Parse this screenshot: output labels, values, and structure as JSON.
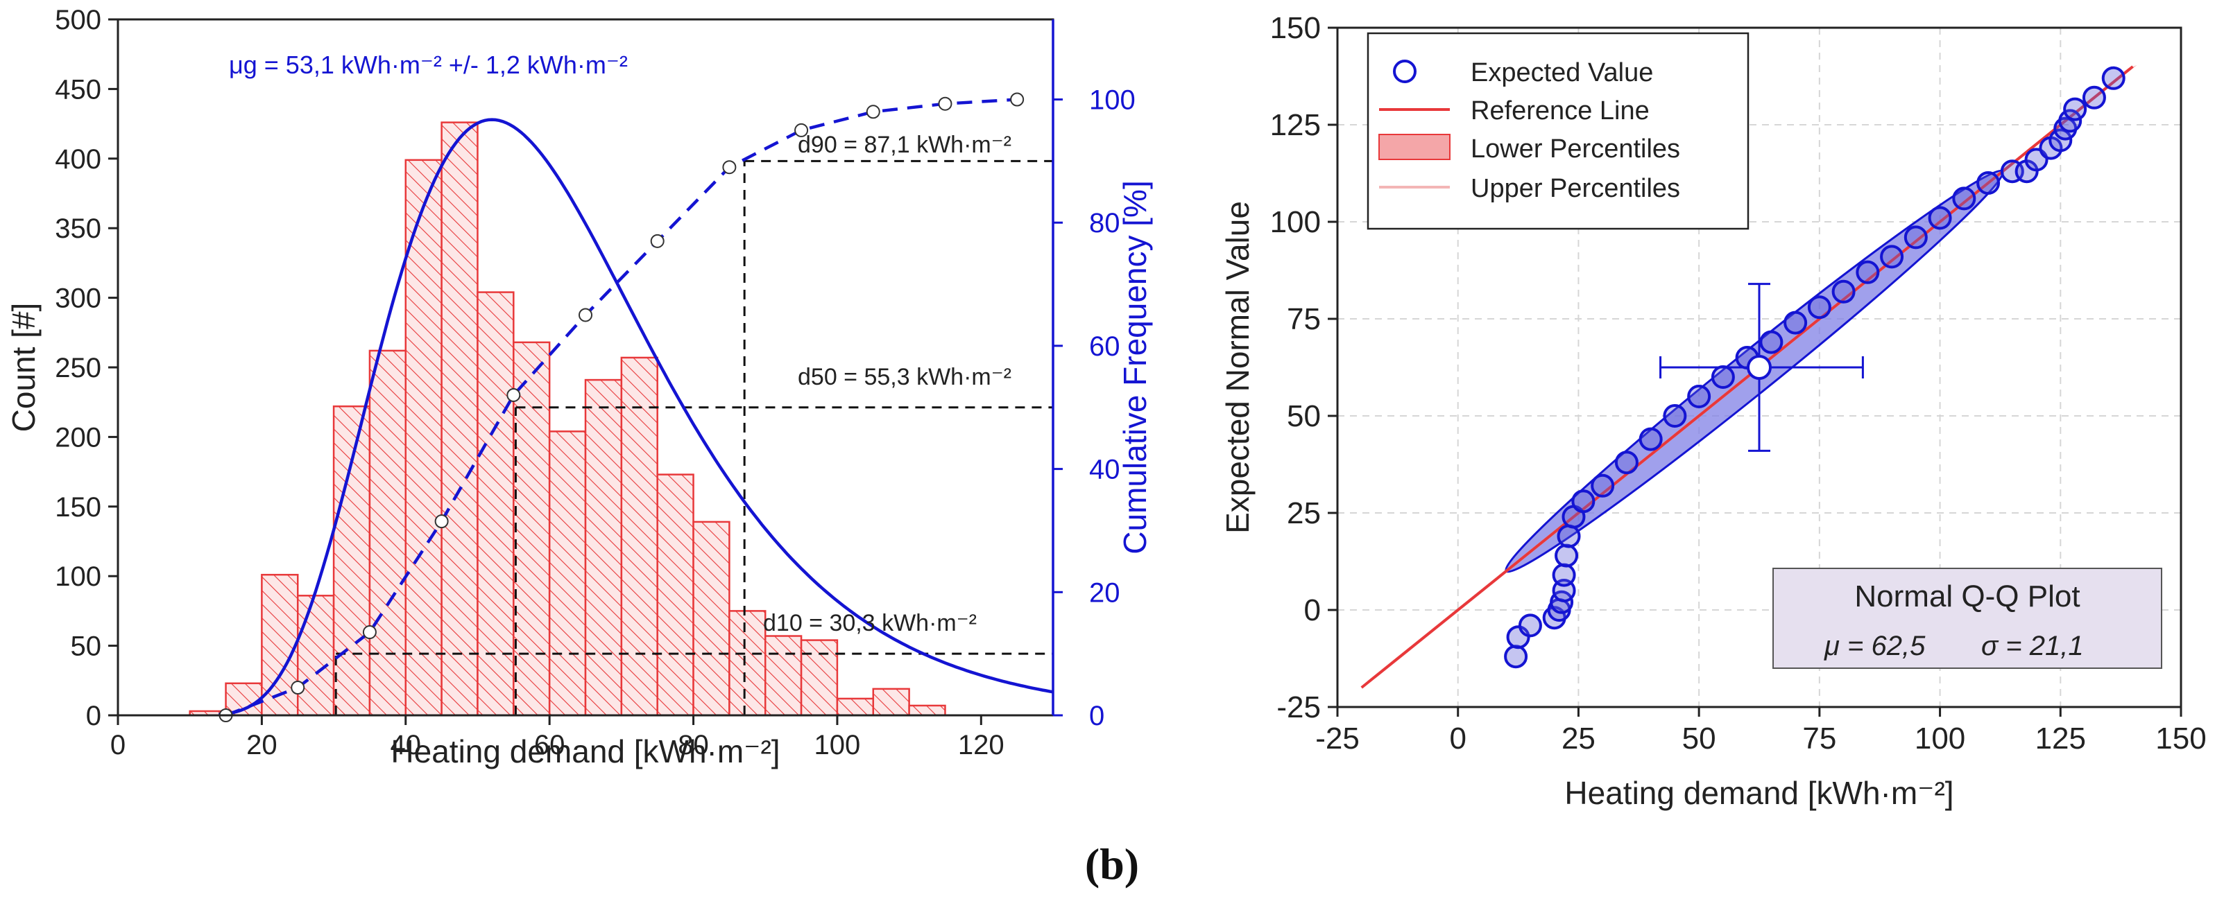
{
  "figure": {
    "caption": "(b)"
  },
  "colors": {
    "blue": "#1414d2",
    "red": "#e8383a",
    "bar_fill": "#fde7e7",
    "ellipse_fill": "#8080e6",
    "plotbox_fill": "#e6e0ef"
  },
  "chart_data": [
    {
      "type": "bar",
      "id": "histogram",
      "xlabel": "Heating demand [kWh·m⁻²]",
      "ylabel": "Count [#]",
      "y2label": "Cumulative Frequency [%]",
      "xlim": [
        0,
        130
      ],
      "ylim": [
        0,
        500
      ],
      "y2lim": [
        0,
        113
      ],
      "x_ticks": [
        0,
        20,
        40,
        60,
        80,
        100,
        120
      ],
      "y_ticks": [
        0,
        50,
        100,
        150,
        200,
        250,
        300,
        350,
        400,
        450,
        500
      ],
      "y2_ticks": [
        0,
        20,
        40,
        60,
        80,
        100
      ],
      "bin_width": 5,
      "bins": [
        {
          "x0": 10,
          "count": 3
        },
        {
          "x0": 15,
          "count": 23
        },
        {
          "x0": 20,
          "count": 101
        },
        {
          "x0": 25,
          "count": 86
        },
        {
          "x0": 30,
          "count": 222
        },
        {
          "x0": 35,
          "count": 262
        },
        {
          "x0": 40,
          "count": 399
        },
        {
          "x0": 45,
          "count": 426
        },
        {
          "x0": 50,
          "count": 304
        },
        {
          "x0": 55,
          "count": 268
        },
        {
          "x0": 60,
          "count": 204
        },
        {
          "x0": 65,
          "count": 241
        },
        {
          "x0": 70,
          "count": 257
        },
        {
          "x0": 75,
          "count": 173
        },
        {
          "x0": 80,
          "count": 139
        },
        {
          "x0": 85,
          "count": 75
        },
        {
          "x0": 90,
          "count": 57
        },
        {
          "x0": 95,
          "count": 54
        },
        {
          "x0": 100,
          "count": 12
        },
        {
          "x0": 105,
          "count": 19
        },
        {
          "x0": 110,
          "count": 7
        },
        {
          "x0": 115,
          "count": 0
        }
      ],
      "fit_curve": {
        "type": "lognormal",
        "peak_x": 52,
        "peak_count": 428
      },
      "cumulative_points": [
        {
          "x": 15,
          "pct": 0
        },
        {
          "x": 25,
          "pct": 4.5
        },
        {
          "x": 35,
          "pct": 13.5
        },
        {
          "x": 45,
          "pct": 31.5
        },
        {
          "x": 55,
          "pct": 52
        },
        {
          "x": 65,
          "pct": 65
        },
        {
          "x": 75,
          "pct": 77
        },
        {
          "x": 85,
          "pct": 89
        },
        {
          "x": 95,
          "pct": 95
        },
        {
          "x": 105,
          "pct": 98
        },
        {
          "x": 115,
          "pct": 99.3
        },
        {
          "x": 125,
          "pct": 100
        }
      ],
      "mu_label": "μg = 53,1 kWh·m⁻² +/- 1,2 kWh·m⁻²",
      "percentiles": [
        {
          "name": "d90",
          "x": 87.1,
          "pct": 90,
          "label": "d90 = 87,1 kWh·m⁻²"
        },
        {
          "name": "d50",
          "x": 55.3,
          "pct": 50,
          "label": "d50 = 55,3 kWh·m⁻²"
        },
        {
          "name": "d10",
          "x": 30.3,
          "pct": 10,
          "label": "d10 = 30,3 kWh·m⁻²"
        }
      ]
    },
    {
      "type": "scatter",
      "id": "qq-plot",
      "xlabel": "Heating demand [kWh·m⁻²]",
      "ylabel": "Expected Normal Value",
      "xlim": [
        -25,
        150
      ],
      "ylim": [
        -25,
        150
      ],
      "x_ticks": [
        -25,
        0,
        25,
        50,
        75,
        100,
        125,
        150
      ],
      "y_ticks": [
        -25,
        0,
        25,
        50,
        75,
        100,
        125,
        150
      ],
      "grid": true,
      "legend": {
        "position": "top-left",
        "entries": [
          "Expected Value",
          "Reference Line",
          "Lower Percentiles",
          "Upper Percentiles"
        ]
      },
      "reference_line": {
        "x": [
          -20,
          140
        ],
        "y": [
          -20,
          140
        ]
      },
      "tail_points": [
        {
          "x": 12,
          "y": -12
        },
        {
          "x": 12.5,
          "y": -7
        },
        {
          "x": 15,
          "y": -4
        },
        {
          "x": 20,
          "y": -2
        },
        {
          "x": 21,
          "y": 0
        },
        {
          "x": 21.5,
          "y": 2
        },
        {
          "x": 22,
          "y": 5
        },
        {
          "x": 22,
          "y": 9
        },
        {
          "x": 22.5,
          "y": 14
        },
        {
          "x": 23,
          "y": 19
        },
        {
          "x": 24,
          "y": 24
        },
        {
          "x": 26,
          "y": 28
        },
        {
          "x": 30,
          "y": 32
        },
        {
          "x": 35,
          "y": 38
        },
        {
          "x": 40,
          "y": 44
        },
        {
          "x": 45,
          "y": 50
        },
        {
          "x": 50,
          "y": 55
        },
        {
          "x": 55,
          "y": 60
        },
        {
          "x": 60,
          "y": 65
        },
        {
          "x": 65,
          "y": 69
        },
        {
          "x": 70,
          "y": 74
        },
        {
          "x": 75,
          "y": 78
        },
        {
          "x": 80,
          "y": 82
        },
        {
          "x": 85,
          "y": 87
        },
        {
          "x": 90,
          "y": 91
        },
        {
          "x": 95,
          "y": 96
        },
        {
          "x": 100,
          "y": 101
        },
        {
          "x": 105,
          "y": 106
        },
        {
          "x": 110,
          "y": 110
        },
        {
          "x": 115,
          "y": 113
        },
        {
          "x": 118,
          "y": 113
        },
        {
          "x": 120,
          "y": 116
        },
        {
          "x": 123,
          "y": 119
        },
        {
          "x": 125,
          "y": 121
        },
        {
          "x": 126,
          "y": 124
        },
        {
          "x": 127,
          "y": 126
        },
        {
          "x": 128,
          "y": 129
        },
        {
          "x": 132,
          "y": 132
        },
        {
          "x": 136,
          "y": 137
        }
      ],
      "mean_point": {
        "x": 62.5,
        "y": 62.5,
        "x_err": [
          42,
          84
        ],
        "y_err": [
          41,
          84
        ]
      },
      "stats_box": {
        "title": "Normal Q-Q Plot",
        "mu_label": "μ = 62,5",
        "sigma_label": "σ = 21,1"
      }
    }
  ]
}
